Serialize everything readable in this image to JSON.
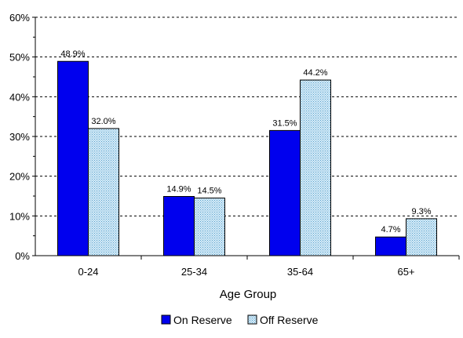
{
  "chart_data": {
    "type": "bar",
    "title": "",
    "xlabel": "Age Group",
    "ylabel": "",
    "categories": [
      "0-24",
      "25-34",
      "35-64",
      "65+"
    ],
    "y_ticks": [
      "0%",
      "10%",
      "20%",
      "30%",
      "40%",
      "50%",
      "60%"
    ],
    "ylim": [
      0,
      60
    ],
    "grid": true,
    "legend_position": "bottom",
    "series": [
      {
        "name": "On Reserve",
        "color": "#0000ee",
        "pattern": "solid",
        "values": [
          48.9,
          14.9,
          31.5,
          4.7
        ],
        "labels": [
          "48.9%",
          "14.9%",
          "31.5%",
          "4.7%"
        ]
      },
      {
        "name": "Off Reserve",
        "color": "#cfe8f5",
        "pattern": "dotted",
        "values": [
          32.0,
          14.5,
          44.2,
          9.3
        ],
        "labels": [
          "32.0%",
          "14.5%",
          "44.2%",
          "9.3%"
        ]
      }
    ]
  }
}
